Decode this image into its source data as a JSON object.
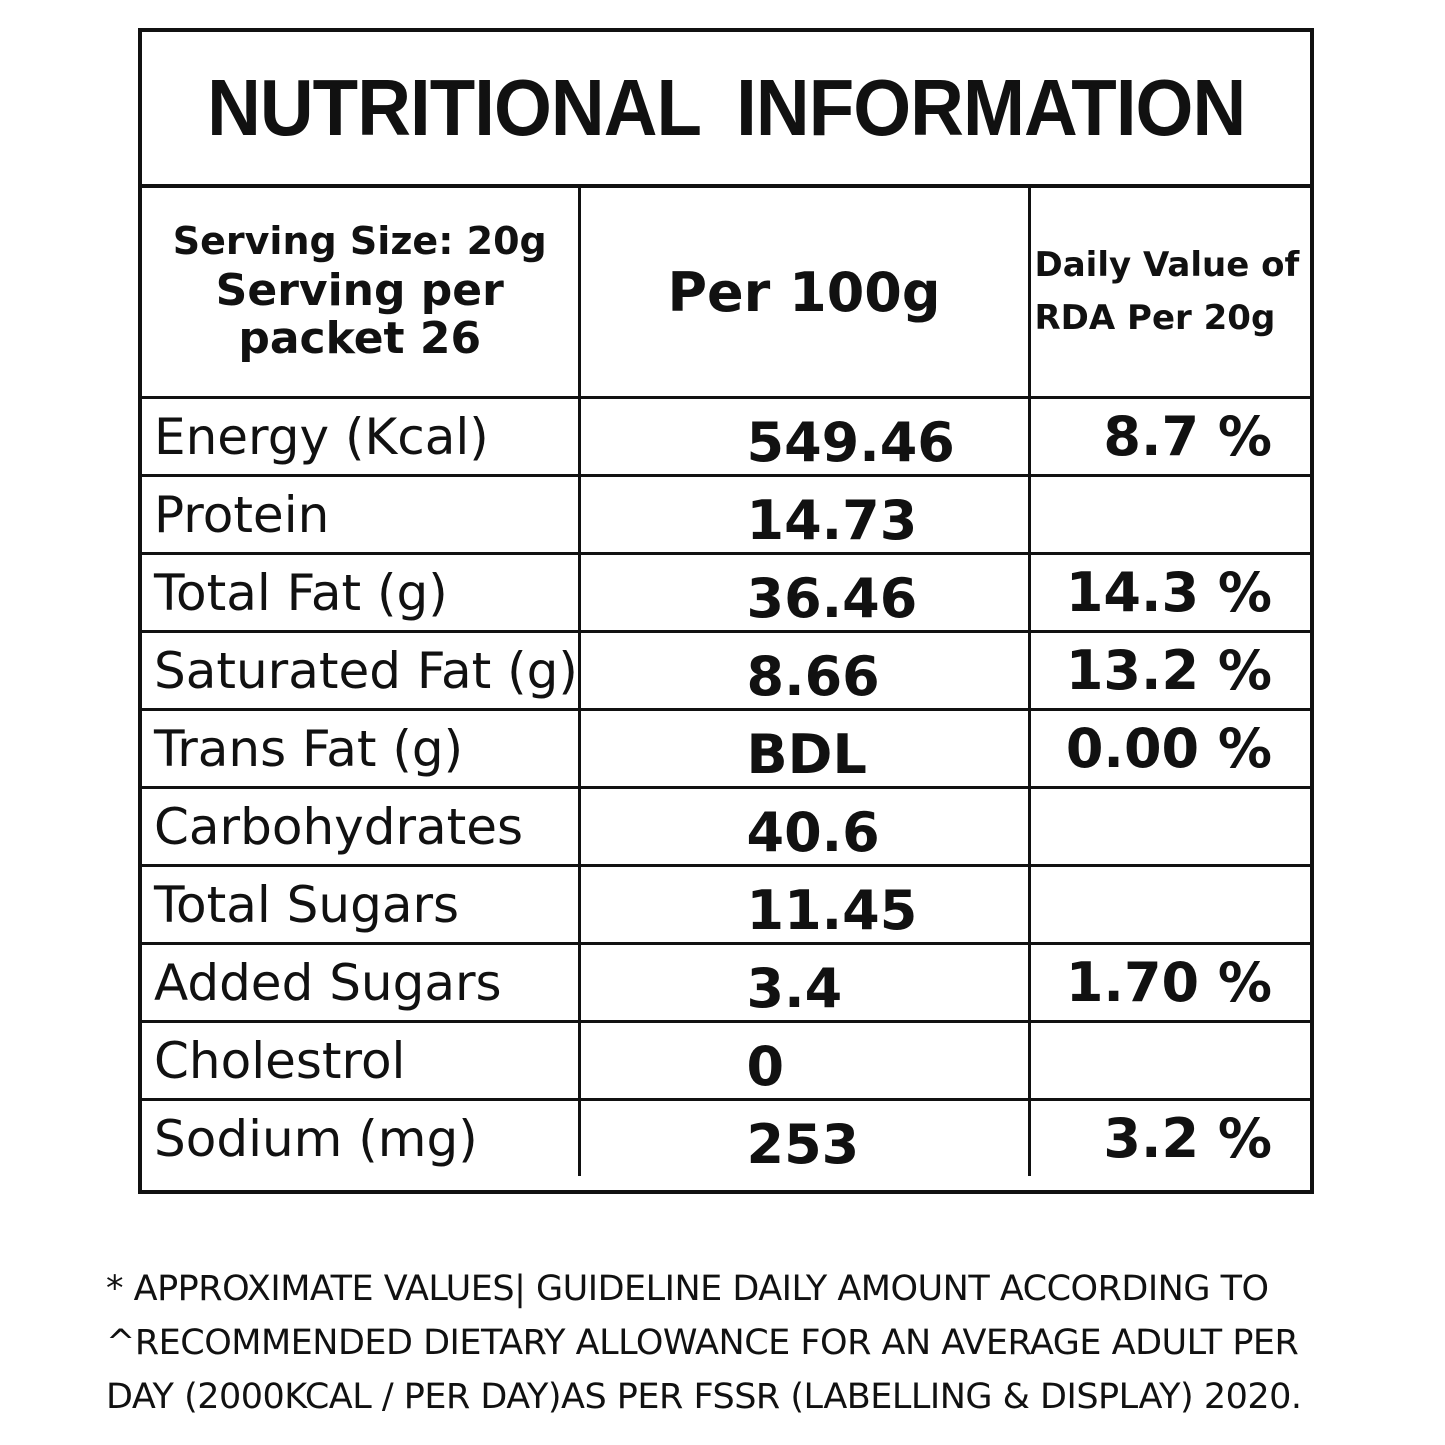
{
  "label": {
    "title": "NUTRITIONAL  INFORMATION",
    "header": {
      "serving_size": "Serving Size: 20g",
      "serving_per_packet_line1": "Serving per",
      "serving_per_packet_line2": "packet 26",
      "per_100g": "Per 100g",
      "daily_value_line1": "Daily Value of",
      "daily_value_line2": "RDA Per 20g"
    },
    "rows": [
      {
        "nutrient": "Energy (Kcal)",
        "per_100g": "549.46",
        "daily_value": "8.7 %"
      },
      {
        "nutrient": "Protein",
        "per_100g": "14.73",
        "daily_value": ""
      },
      {
        "nutrient": "Total Fat (g)",
        "per_100g": "36.46",
        "daily_value": "14.3 %"
      },
      {
        "nutrient": "Saturated Fat (g)",
        "per_100g": "8.66",
        "daily_value": "13.2 %"
      },
      {
        "nutrient": "Trans Fat (g)",
        "per_100g": "BDL",
        "daily_value": "0.00 %"
      },
      {
        "nutrient": "Carbohydrates",
        "per_100g": "40.6",
        "daily_value": ""
      },
      {
        "nutrient": "Total Sugars",
        "per_100g": "11.45",
        "daily_value": ""
      },
      {
        "nutrient": "Added Sugars",
        "per_100g": "3.4",
        "daily_value": "1.70 %"
      },
      {
        "nutrient": "Cholestrol",
        "per_100g": "0",
        "daily_value": ""
      },
      {
        "nutrient": "Sodium (mg)",
        "per_100g": "253",
        "daily_value": "3.2 %"
      }
    ]
  },
  "footnote": {
    "line1": "* APPROXIMATE VALUES| GUIDELINE DAILY AMOUNT ACCORDING TO",
    "line2": "^RECOMMENDED DIETARY ALLOWANCE FOR AN AVERAGE ADULT PER",
    "line3": "DAY (2000KCAL / PER DAY)AS PER FSSR (LABELLING & DISPLAY) 2020."
  },
  "colors": {
    "ink": "#111111",
    "background": "#ffffff"
  }
}
